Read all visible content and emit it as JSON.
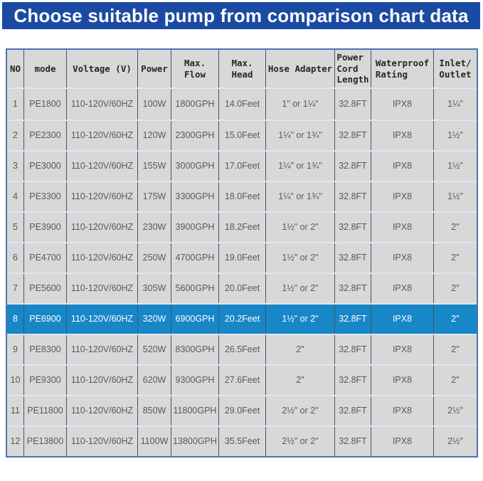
{
  "chart_data": {
    "type": "table",
    "title": "Choose suitable pump from comparison chart data",
    "columns": [
      {
        "id": "no",
        "label": "NO"
      },
      {
        "id": "mode",
        "label": "mode"
      },
      {
        "id": "voltage",
        "label": "Voltage (V)"
      },
      {
        "id": "power",
        "label": "Power"
      },
      {
        "id": "max-flow",
        "label": "Max.\nFlow"
      },
      {
        "id": "max-head",
        "label": "Max.\nHead"
      },
      {
        "id": "hose-adapter",
        "label": "Hose Adapter"
      },
      {
        "id": "cord-length",
        "label": "Power\nCord\nLength"
      },
      {
        "id": "waterproof",
        "label": "Waterproof\nRating"
      },
      {
        "id": "inlet-outlet",
        "label": "Inlet/\nOutlet"
      }
    ],
    "rows": [
      {
        "cells": [
          "1",
          "PE1800",
          "110-120V/60HZ",
          "100W",
          "1800GPH",
          "14.0Feet",
          "1\" or 1¼\"",
          "32.8FT",
          "IPX8",
          "1¼\""
        ]
      },
      {
        "cells": [
          "2",
          "PE2300",
          "110-120V/60HZ",
          "120W",
          "2300GPH",
          "15.0Feet",
          "1¼\" or 1¾\"",
          "32.8FT",
          "IPX8",
          "1½\""
        ]
      },
      {
        "cells": [
          "3",
          "PE3000",
          "110-120V/60HZ",
          "155W",
          "3000GPH",
          "17.0Feet",
          "1¼\" or 1¾\"",
          "32.8FT",
          "IPX8",
          "1½\""
        ]
      },
      {
        "cells": [
          "4",
          "PE3300",
          "110-120V/60HZ",
          "175W",
          "3300GPH",
          "18.0Feet",
          "1¼\" or 1¾\"",
          "32.8FT",
          "IPX8",
          "1½\""
        ]
      },
      {
        "cells": [
          "5",
          "PE3900",
          "110-120V/60HZ",
          "230W",
          "3900GPH",
          "18.2Feet",
          "1½\" or 2\"",
          "32.8FT",
          "IPX8",
          "2\""
        ]
      },
      {
        "cells": [
          "6",
          "PE4700",
          "110-120V/60HZ",
          "250W",
          "4700GPH",
          "19.0Feet",
          "1½\" or 2\"",
          "32.8FT",
          "IPX8",
          "2\""
        ]
      },
      {
        "cells": [
          "7",
          "PE5600",
          "110-120V/60HZ",
          "305W",
          "5600GPH",
          "20.0Feet",
          "1½\" or 2\"",
          "32.8FT",
          "IPX8",
          "2\""
        ]
      },
      {
        "cells": [
          "8",
          "PE6900",
          "110-120V/60HZ",
          "320W",
          "6900GPH",
          "20.2Feet",
          "1½\" or 2\"",
          "32.8FT",
          "IPX8",
          "2\""
        ]
      },
      {
        "cells": [
          "9",
          "PE8300",
          "110-120V/60HZ",
          "520W",
          "8300GPH",
          "26.5Feet",
          "2\"",
          "32.8FT",
          "IPX8",
          "2\""
        ]
      },
      {
        "cells": [
          "10",
          "PE9300",
          "110-120V/60HZ",
          "620W",
          "9300GPH",
          "27.6Feet",
          "2\"",
          "32.8FT",
          "IPX8",
          "2\""
        ]
      },
      {
        "cells": [
          "11",
          "PE11800",
          "110-120V/60HZ",
          "850W",
          "11800GPH",
          "29.0Feet",
          "2½\" or 2\"",
          "32.8FT",
          "IPX8",
          "2½\""
        ]
      },
      {
        "cells": [
          "12",
          "PE13800",
          "110-120V/60HZ",
          "1100W",
          "13800GPH",
          "35.5Feet",
          "2½\" or 2\"",
          "32.8FT",
          "IPX8",
          "2½\""
        ]
      }
    ],
    "highlight_index": 7,
    "highlighted_model": "PE6900",
    "legend_position": "none",
    "grid": true
  },
  "colors": {
    "banner_bg": "#1b4aa2",
    "banner_text": "#ffffff",
    "highlight_bg": "#1787c8",
    "highlight_text": "#ffffff",
    "cell_bg": "#d8d8d8",
    "body_text": "#595959",
    "header_text": "#262626",
    "vertical_border": "#44546a",
    "horizontal_border": "#dce6f2",
    "outer_border": "#4a74b4",
    "page_bg": "#ffffff"
  }
}
